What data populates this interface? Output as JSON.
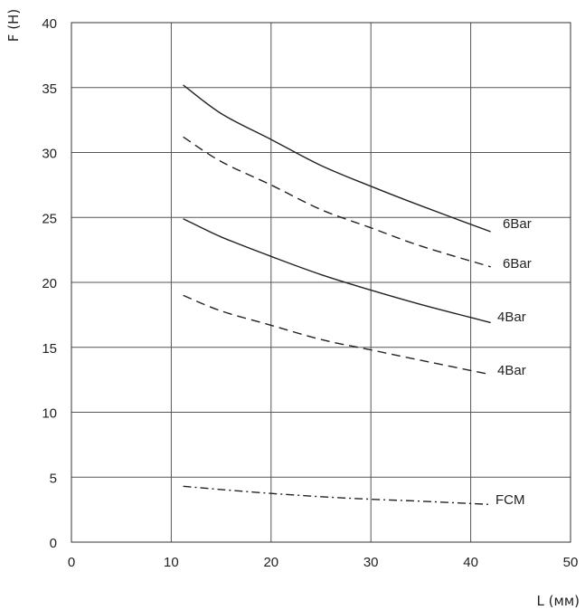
{
  "chart_data": {
    "type": "line",
    "title": "",
    "xlabel": "L (мм)",
    "ylabel": "F (Н)",
    "xlim": [
      0,
      50
    ],
    "ylim": [
      0,
      40
    ],
    "x_ticks": [
      0,
      10,
      20,
      30,
      40,
      50
    ],
    "y_ticks": [
      0,
      5,
      10,
      15,
      20,
      25,
      30,
      35,
      40
    ],
    "grid": true,
    "series": [
      {
        "label": "6Bar",
        "style": "solid",
        "x": [
          11.2,
          15,
          20,
          25,
          30,
          35,
          42
        ],
        "y": [
          35.2,
          33.0,
          31.0,
          29.0,
          27.4,
          25.9,
          23.9
        ]
      },
      {
        "label": "6Bar",
        "style": "dashed",
        "x": [
          11.2,
          15,
          20,
          25,
          30,
          35,
          42
        ],
        "y": [
          31.2,
          29.3,
          27.5,
          25.6,
          24.2,
          22.8,
          21.2
        ]
      },
      {
        "label": "4Bar",
        "style": "solid",
        "x": [
          11.2,
          15,
          20,
          25,
          30,
          35,
          42
        ],
        "y": [
          24.9,
          23.5,
          22.0,
          20.6,
          19.4,
          18.3,
          16.9
        ]
      },
      {
        "label": "4Bar",
        "style": "dashed",
        "x": [
          11.2,
          15,
          20,
          25,
          30,
          35,
          42
        ],
        "y": [
          19.0,
          17.8,
          16.7,
          15.6,
          14.8,
          14.0,
          12.9
        ]
      },
      {
        "label": "FCM",
        "style": "dashdot",
        "x": [
          11.2,
          15,
          20,
          25,
          30,
          35,
          42
        ],
        "y": [
          4.3,
          4.05,
          3.75,
          3.5,
          3.3,
          3.15,
          2.9
        ]
      }
    ]
  }
}
